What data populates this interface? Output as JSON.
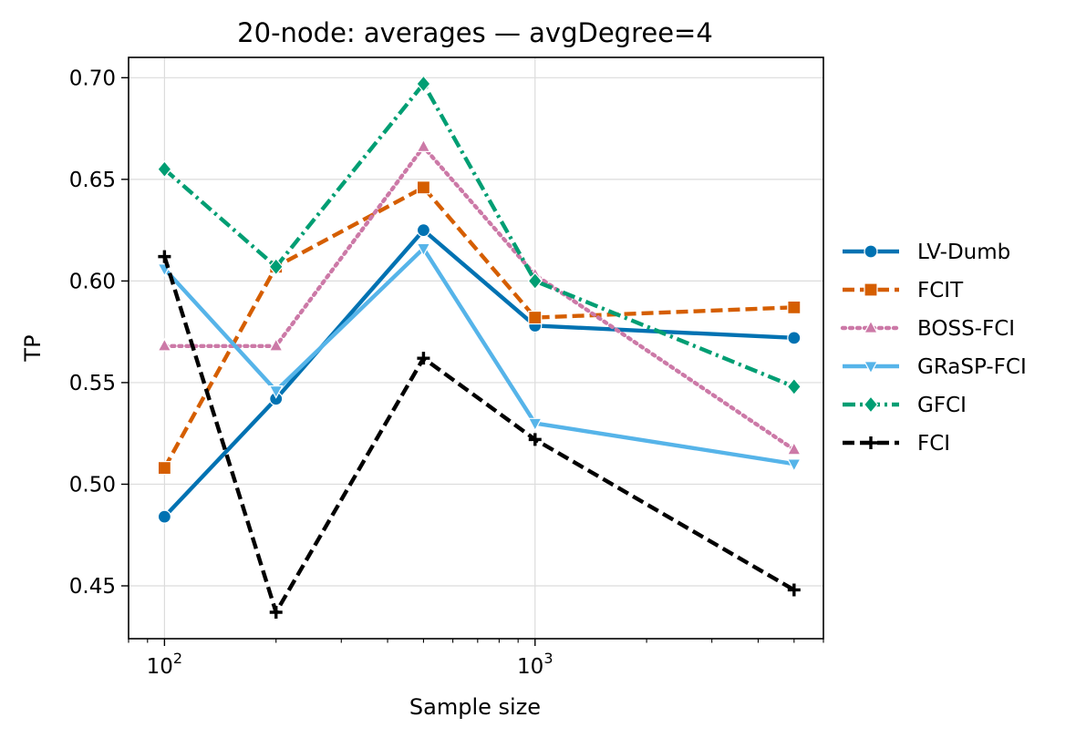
{
  "chart_data": {
    "type": "line",
    "title": "20-node: averages — avgDegree=4",
    "xlabel": "Sample size",
    "ylabel": "TP",
    "xscale": "log",
    "x": [
      100,
      200,
      500,
      1000,
      5000
    ],
    "xlim": [
      80,
      6000
    ],
    "ylim": [
      0.424,
      0.71
    ],
    "x_ticks": [
      {
        "value": 100,
        "base": "10",
        "exp": "2"
      },
      {
        "value": 1000,
        "base": "10",
        "exp": "3"
      }
    ],
    "y_ticks": [
      {
        "value": 0.45,
        "label": "0.45"
      },
      {
        "value": 0.5,
        "label": "0.50"
      },
      {
        "value": 0.55,
        "label": "0.55"
      },
      {
        "value": 0.6,
        "label": "0.60"
      },
      {
        "value": 0.65,
        "label": "0.65"
      },
      {
        "value": 0.7,
        "label": "0.70"
      }
    ],
    "grid": true,
    "legend_position": "right, outside plot",
    "series": [
      {
        "name": "LV-Dumb",
        "color": "#0072b2",
        "dash": "solid",
        "marker": "circle",
        "values": [
          0.484,
          0.542,
          0.625,
          0.578,
          0.572
        ]
      },
      {
        "name": "FCIT",
        "color": "#d55e00",
        "dash": "dashed",
        "marker": "square",
        "values": [
          0.508,
          0.607,
          0.646,
          0.582,
          0.587
        ]
      },
      {
        "name": "BOSS-FCI",
        "color": "#cc79a7",
        "dash": "dotted",
        "marker": "triangle-up",
        "values": [
          0.568,
          0.568,
          0.666,
          0.603,
          0.517
        ]
      },
      {
        "name": "GRaSP-FCI",
        "color": "#56b4e9",
        "dash": "solid",
        "marker": "triangle-down",
        "values": [
          0.606,
          0.546,
          0.616,
          0.53,
          0.51
        ]
      },
      {
        "name": "GFCI",
        "color": "#009e73",
        "dash": "dashdot",
        "marker": "diamond",
        "values": [
          0.655,
          0.607,
          0.697,
          0.6,
          0.548
        ]
      },
      {
        "name": "FCI",
        "color": "#000000",
        "dash": "dashed",
        "marker": "plus",
        "values": [
          0.612,
          0.437,
          0.562,
          0.522,
          0.448
        ]
      }
    ]
  }
}
